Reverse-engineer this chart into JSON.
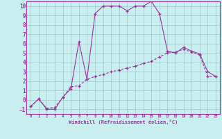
{
  "xlabel": "Windchill (Refroidissement éolien,°C)",
  "bg_color": "#c8eef0",
  "grid_color": "#a0c8c8",
  "line_color": "#993399",
  "xlim": [
    -0.5,
    23.5
  ],
  "ylim": [
    -1.5,
    10.5
  ],
  "xticks": [
    0,
    1,
    2,
    3,
    4,
    5,
    6,
    7,
    8,
    9,
    10,
    11,
    12,
    13,
    14,
    15,
    16,
    17,
    18,
    19,
    20,
    21,
    22,
    23
  ],
  "yticks": [
    -1,
    0,
    1,
    2,
    3,
    4,
    5,
    6,
    7,
    8,
    9,
    10
  ],
  "curve1_x": [
    0,
    1,
    2,
    3,
    4,
    5,
    6,
    7,
    8,
    9,
    10,
    11,
    12,
    13,
    14,
    15,
    16,
    17,
    18,
    19,
    20,
    21,
    22,
    23
  ],
  "curve1_y": [
    -0.7,
    0.1,
    -1.0,
    -1.0,
    0.3,
    1.2,
    6.2,
    2.2,
    9.2,
    10.0,
    10.0,
    10.0,
    9.5,
    10.0,
    10.0,
    10.5,
    9.2,
    5.2,
    5.0,
    5.6,
    5.2,
    4.9,
    3.0,
    2.5
  ],
  "curve2_x": [
    0,
    1,
    2,
    3,
    4,
    5,
    6,
    7,
    8,
    9,
    10,
    11,
    12,
    13,
    14,
    15,
    16,
    17,
    18,
    19,
    20,
    21,
    22,
    23
  ],
  "curve2_y": [
    -0.7,
    0.1,
    -0.9,
    -0.8,
    0.3,
    1.4,
    1.5,
    2.2,
    2.5,
    2.7,
    3.0,
    3.2,
    3.4,
    3.6,
    3.9,
    4.1,
    4.6,
    5.0,
    5.1,
    5.4,
    5.1,
    4.8,
    2.5,
    2.5
  ]
}
